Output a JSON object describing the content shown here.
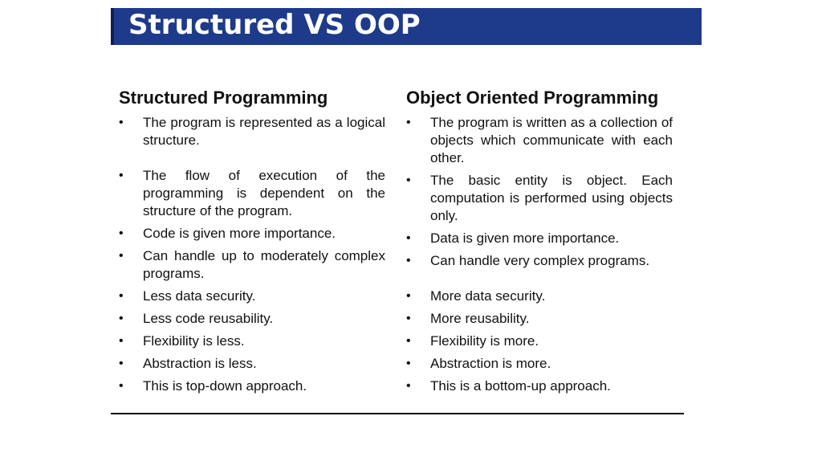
{
  "slide": {
    "title": "Structured VS OOP",
    "colors": {
      "title_bar": "#1e3a8a",
      "title_text": "#ffffff",
      "body_text": "#111111"
    }
  },
  "structured": {
    "heading": "Structured Programming",
    "items": [
      "The program is represented as a logical structure.",
      "The flow of execution of the programming is dependent on the structure of the program.",
      "Code is given more importance.",
      "Can handle up to moderately complex programs.",
      "Less data security.",
      "Less code reusability.",
      "Flexibility is less.",
      "Abstraction is less.",
      "This is top-down approach."
    ]
  },
  "oop": {
    "heading": "Object Oriented Programming",
    "items": [
      "The program is written as a collection of objects which communicate with each other.",
      "The basic entity is object. Each computation is performed using objects only.",
      "Data is given more importance.",
      "Can handle very complex programs.",
      "More data security.",
      "More reusability.",
      "Flexibility is more.",
      "Abstraction is more.",
      "This is a bottom-up approach."
    ]
  }
}
